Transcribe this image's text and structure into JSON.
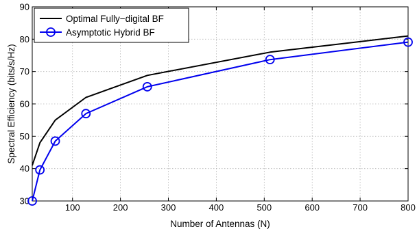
{
  "chart_data": {
    "type": "line",
    "title": "",
    "xlabel": "Number of Antennas (N)",
    "ylabel": "Spectral Efficiency (bits/s/Hz)",
    "xlim": [
      16,
      800
    ],
    "ylim": [
      30,
      90
    ],
    "xticks": [
      100,
      200,
      300,
      400,
      500,
      600,
      700,
      800
    ],
    "yticks": [
      30,
      40,
      50,
      60,
      70,
      80,
      90
    ],
    "grid": true,
    "legend_position": "top-left",
    "series": [
      {
        "name": "Optimal Fully−digital BF",
        "color": "#000000",
        "marker": "none",
        "x": [
          16,
          32,
          64,
          128,
          256,
          512,
          800
        ],
        "y": [
          41,
          48,
          55,
          62,
          68.8,
          76,
          81
        ]
      },
      {
        "name": "Asymptotic Hybrid BF",
        "color": "#0000ee",
        "marker": "circle",
        "x": [
          16,
          32,
          64,
          128,
          256,
          512,
          800
        ],
        "y": [
          30,
          39.6,
          48.5,
          57,
          65.3,
          73.7,
          79.1
        ]
      }
    ]
  }
}
